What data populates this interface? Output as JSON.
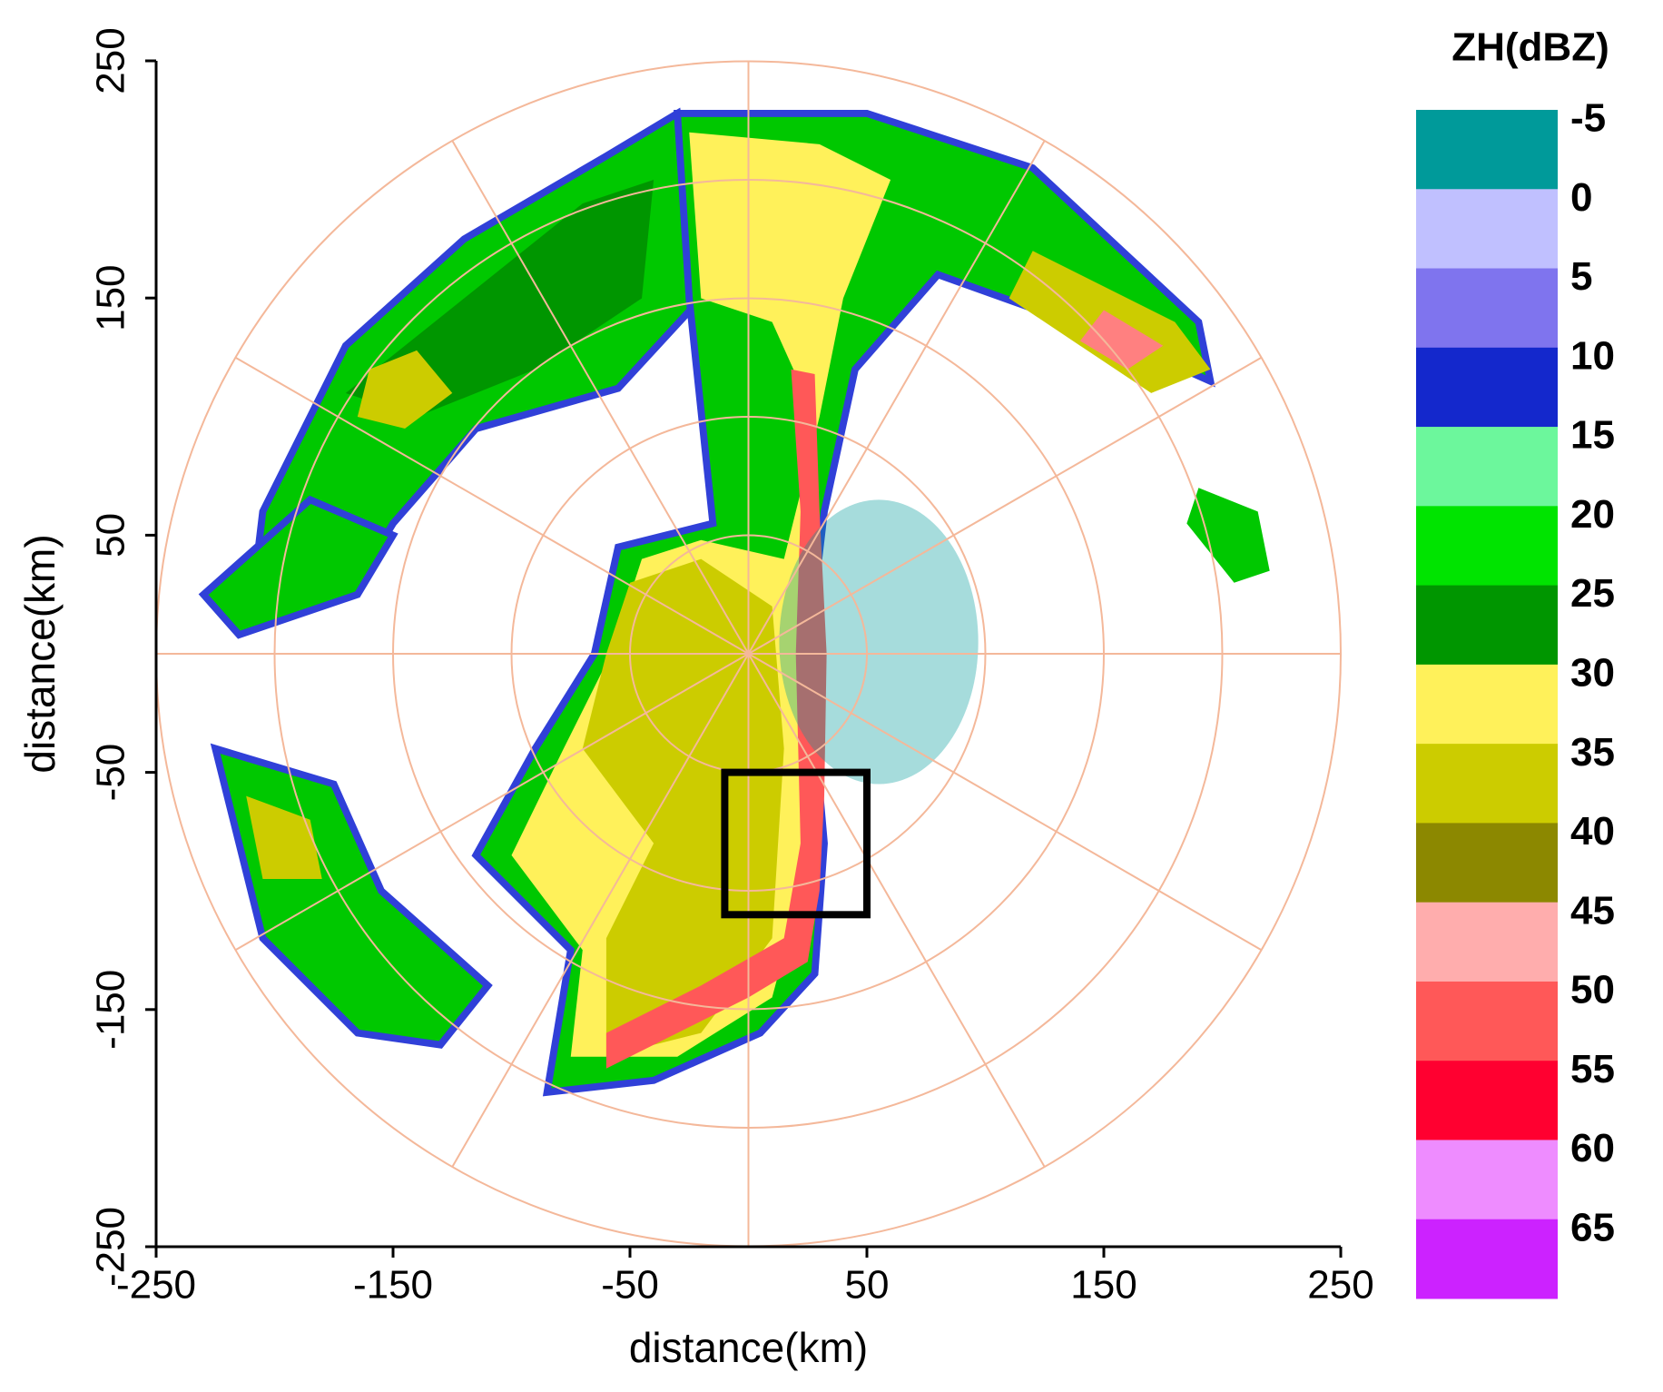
{
  "chart_data": {
    "type": "radar_ppi",
    "xlabel": "distance(km)",
    "ylabel": "distance(km)",
    "xlim": [
      -250,
      250
    ],
    "ylim": [
      -250,
      250
    ],
    "xticks": [
      -250,
      -150,
      -50,
      50,
      150,
      250
    ],
    "yticks": [
      -250,
      -150,
      -50,
      50,
      150,
      250
    ],
    "range_rings": [
      50,
      100,
      150,
      200,
      250
    ],
    "spoke_step_deg": 30,
    "ring_color": "#f4b89a",
    "highlight_box": {
      "x": [
        -10,
        50
      ],
      "y": [
        -110,
        -50
      ],
      "color": "#000000"
    },
    "colorbar": {
      "title": "ZH(dBZ)",
      "levels": [
        -5,
        0,
        5,
        10,
        15,
        20,
        25,
        30,
        35,
        40,
        45,
        50,
        55,
        60,
        65
      ],
      "colors": [
        "#009a9a",
        "#c0c0ff",
        "#7f74ee",
        "#1428cc",
        "#6cf79c",
        "#00e400",
        "#009600",
        "#fff15a",
        "#cccc00",
        "#8c8800",
        "#ffadad",
        "#ff5858",
        "#ff0030",
        "#ee8cff",
        "#cc22ff"
      ]
    }
  }
}
